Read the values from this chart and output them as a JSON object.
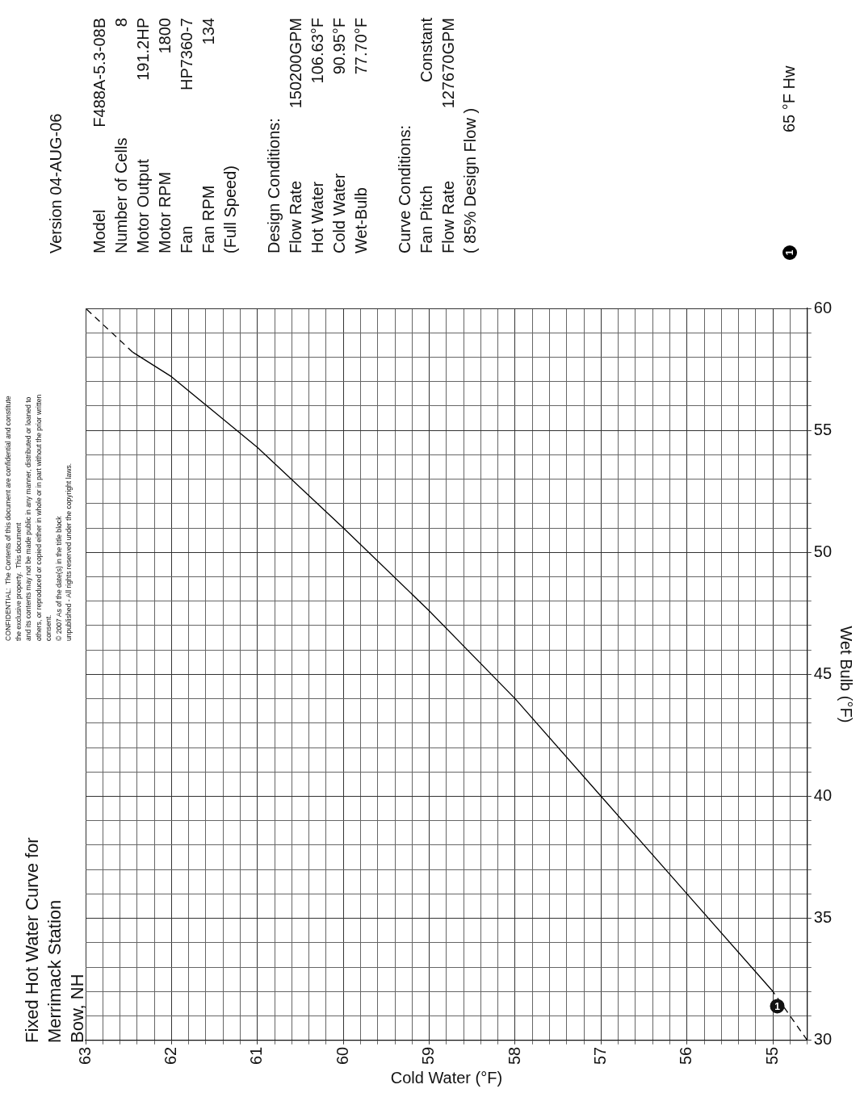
{
  "chart_data": {
    "type": "line",
    "title": "Fixed Hot Water Curve for\nMerrimack Station\nBow, NH",
    "xlabel": "Cold Water (°F)",
    "ylabel": "Wet Bulb (°F)",
    "xlim": [
      63,
      54.6
    ],
    "ylim": [
      30,
      60
    ],
    "xticks": [
      63,
      {
        "value": 62.8,
        "label": null
      },
      {
        "value": 62.6,
        "label": null
      },
      {
        "value": 62.4,
        "label": null
      },
      {
        "value": 62.2,
        "label": null
      },
      62,
      {
        "value": 61.8,
        "label": null
      },
      {
        "value": 61.6,
        "label": null
      },
      {
        "value": 61.4,
        "label": null
      },
      {
        "value": 61.2,
        "label": null
      },
      61,
      {
        "value": 60.8,
        "label": null
      },
      {
        "value": 60.6,
        "label": null
      },
      {
        "value": 60.4,
        "label": null
      },
      {
        "value": 60.2,
        "label": null
      },
      60,
      {
        "value": 59.8,
        "label": null
      },
      {
        "value": 59.6,
        "label": null
      },
      {
        "value": 59.4,
        "label": null
      },
      {
        "value": 59.2,
        "label": null
      },
      59,
      {
        "value": 58.8,
        "label": null
      },
      {
        "value": 58.6,
        "label": null
      },
      {
        "value": 58.4,
        "label": null
      },
      {
        "value": 58.2,
        "label": null
      },
      58,
      {
        "value": 57.8,
        "label": null
      },
      {
        "value": 57.6,
        "label": null
      },
      {
        "value": 57.4,
        "label": null
      },
      {
        "value": 57.2,
        "label": null
      },
      57,
      {
        "value": 56.8,
        "label": null
      },
      {
        "value": 56.6,
        "label": null
      },
      {
        "value": 56.4,
        "label": null
      },
      {
        "value": 56.2,
        "label": null
      },
      56,
      {
        "value": 55.8,
        "label": null
      },
      {
        "value": 55.6,
        "label": null
      },
      {
        "value": 55.4,
        "label": null
      },
      {
        "value": 55.2,
        "label": null
      },
      55,
      {
        "value": 54.8,
        "label": null
      },
      {
        "value": 54.6,
        "label": null
      }
    ],
    "yticks": [
      30,
      {
        "value": 31,
        "label": null
      },
      {
        "value": 32,
        "label": null
      },
      {
        "value": 33,
        "label": null
      },
      {
        "value": 34,
        "label": null
      },
      35,
      {
        "value": 36,
        "label": null
      },
      {
        "value": 37,
        "label": null
      },
      {
        "value": 38,
        "label": null
      },
      {
        "value": 39,
        "label": null
      },
      40,
      {
        "value": 41,
        "label": null
      },
      {
        "value": 42,
        "label": null
      },
      {
        "value": 43,
        "label": null
      },
      {
        "value": 44,
        "label": null
      },
      45,
      {
        "value": 46,
        "label": null
      },
      {
        "value": 47,
        "label": null
      },
      {
        "value": 48,
        "label": null
      },
      {
        "value": 49,
        "label": null
      },
      50,
      {
        "value": 51,
        "label": null
      },
      {
        "value": 52,
        "label": null
      },
      {
        "value": 53,
        "label": null
      },
      {
        "value": 54,
        "label": null
      },
      55,
      {
        "value": 56,
        "label": null
      },
      {
        "value": 57,
        "label": null
      },
      {
        "value": 58,
        "label": null
      },
      {
        "value": 59,
        "label": null
      },
      60
    ],
    "grid": true,
    "legend": "right",
    "marker": "none",
    "series": [
      {
        "name": "65 °F Hw",
        "color": "#000000",
        "line_style": "solid",
        "x": [
          55,
          56,
          57,
          58,
          59,
          60,
          61,
          62,
          62.45
        ],
        "values": [
          32,
          36,
          40,
          44,
          47.6,
          51,
          54.3,
          57.2,
          58.2
        ]
      },
      {
        "color": "#000000",
        "line_style": "dashed",
        "x": [
          54.6,
          55
        ],
        "values": [
          30,
          32
        ]
      },
      {
        "color": "#000000",
        "line_style": "dashed",
        "x": [
          62.45,
          63
        ],
        "values": [
          58.2,
          60
        ]
      }
    ],
    "annotations": [
      "CONFIDENTIAL:  The Contents of this document are confidential and constitute\nthe exclusive property.  This document\nand its contents may not be made public in any manner, distributed or loaned to\nothers, or reproduced or copied either in whole or in part without the prior written\nconsent.\n© 2007 As of the date(s) in the title block\nunpublished - All rights reserved under the copyright laws.",
      "Version 04-AUG-06",
      "Model\tF488A-5.3-08B",
      "Number of Cells\t8",
      "Motor Output\t191.2HP",
      "Motor RPM\t1800",
      "Fan\tHP7360-7",
      "Fan RPM\t134",
      "(Full Speed)",
      "Design Conditions:",
      "Flow Rate\t150200GPM",
      "Hot Water\t106.63°F",
      "Cold Water\t90.95°F",
      "Wet-Bulb\t77.70°F",
      "Curve Conditions:",
      "Fan Pitch\tConstant",
      "Flow Rate\t127670GPM",
      "( 85% Design Flow )",
      {
        "text": "1",
        "x": 54.95,
        "y": 31.4
      }
    ]
  }
}
